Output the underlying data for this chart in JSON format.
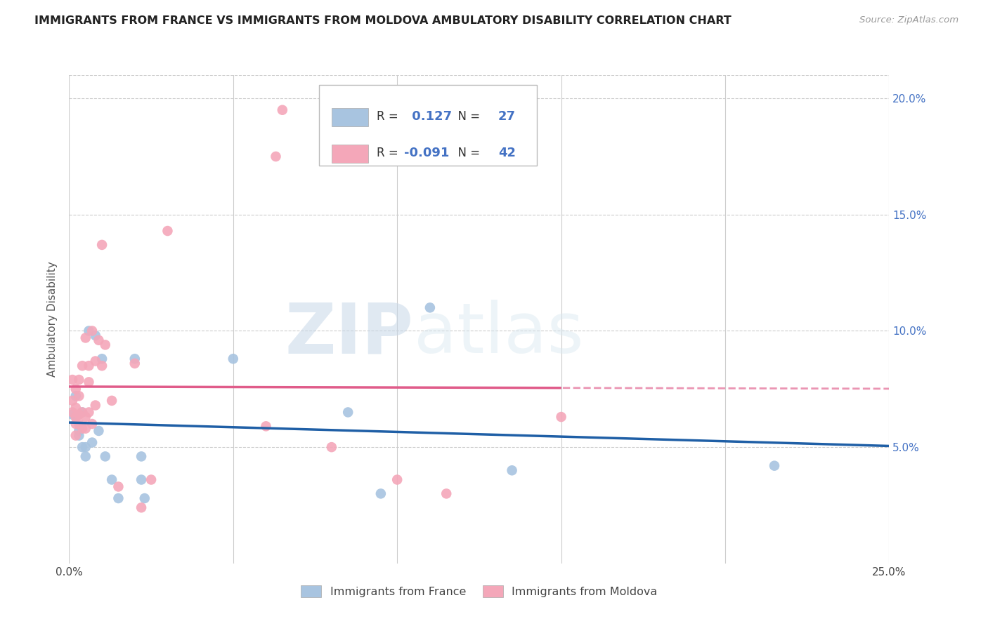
{
  "title": "IMMIGRANTS FROM FRANCE VS IMMIGRANTS FROM MOLDOVA AMBULATORY DISABILITY CORRELATION CHART",
  "source": "Source: ZipAtlas.com",
  "ylabel": "Ambulatory Disability",
  "xlim": [
    0.0,
    0.25
  ],
  "ylim": [
    0.0,
    0.21
  ],
  "xticks": [
    0.0,
    0.05,
    0.1,
    0.15,
    0.2,
    0.25
  ],
  "yticks": [
    0.05,
    0.1,
    0.15,
    0.2
  ],
  "ytick_labels": [
    "5.0%",
    "10.0%",
    "15.0%",
    "20.0%"
  ],
  "france_R": 0.127,
  "france_N": 27,
  "moldova_R": -0.091,
  "moldova_N": 42,
  "france_color": "#a8c4e0",
  "moldova_color": "#f4a7b9",
  "france_line_color": "#1f5fa6",
  "moldova_line_color": "#e05c8a",
  "watermark_zip": "ZIP",
  "watermark_atlas": "atlas",
  "legend_label_france": "Immigrants from France",
  "legend_label_moldova": "Immigrants from Moldova",
  "france_scatter_x": [
    0.001,
    0.002,
    0.002,
    0.003,
    0.003,
    0.004,
    0.004,
    0.005,
    0.005,
    0.006,
    0.007,
    0.008,
    0.009,
    0.01,
    0.011,
    0.013,
    0.015,
    0.02,
    0.022,
    0.022,
    0.023,
    0.05,
    0.085,
    0.095,
    0.11,
    0.135,
    0.215
  ],
  "france_scatter_y": [
    0.064,
    0.072,
    0.063,
    0.055,
    0.057,
    0.065,
    0.05,
    0.046,
    0.05,
    0.1,
    0.052,
    0.098,
    0.057,
    0.088,
    0.046,
    0.036,
    0.028,
    0.088,
    0.046,
    0.036,
    0.028,
    0.088,
    0.065,
    0.03,
    0.11,
    0.04,
    0.042
  ],
  "moldova_scatter_x": [
    0.001,
    0.001,
    0.001,
    0.002,
    0.002,
    0.002,
    0.002,
    0.002,
    0.003,
    0.003,
    0.003,
    0.003,
    0.004,
    0.004,
    0.004,
    0.005,
    0.005,
    0.005,
    0.006,
    0.006,
    0.006,
    0.007,
    0.007,
    0.008,
    0.008,
    0.009,
    0.01,
    0.01,
    0.011,
    0.013,
    0.015,
    0.02,
    0.022,
    0.025,
    0.03,
    0.06,
    0.063,
    0.065,
    0.08,
    0.1,
    0.115,
    0.15
  ],
  "moldova_scatter_y": [
    0.065,
    0.07,
    0.079,
    0.055,
    0.06,
    0.063,
    0.067,
    0.075,
    0.06,
    0.064,
    0.072,
    0.079,
    0.058,
    0.065,
    0.085,
    0.058,
    0.063,
    0.097,
    0.065,
    0.078,
    0.085,
    0.06,
    0.1,
    0.068,
    0.087,
    0.096,
    0.085,
    0.137,
    0.094,
    0.07,
    0.033,
    0.086,
    0.024,
    0.036,
    0.143,
    0.059,
    0.175,
    0.195,
    0.05,
    0.036,
    0.03,
    0.063
  ]
}
